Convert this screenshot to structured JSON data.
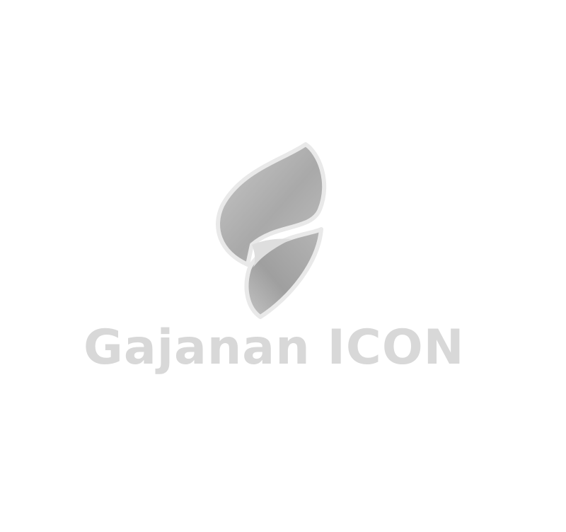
{
  "logo": {
    "name_primary": "Gajanan",
    "name_secondary": "ICON",
    "colors": {
      "background": "#ffffff",
      "emblem_fill_dark": "#a8a8a8",
      "emblem_fill_light": "#d9d9d9",
      "emblem_outline": "#e9e9e9",
      "wordmark": "#d8d8d8"
    },
    "icon": "flame-icon"
  }
}
